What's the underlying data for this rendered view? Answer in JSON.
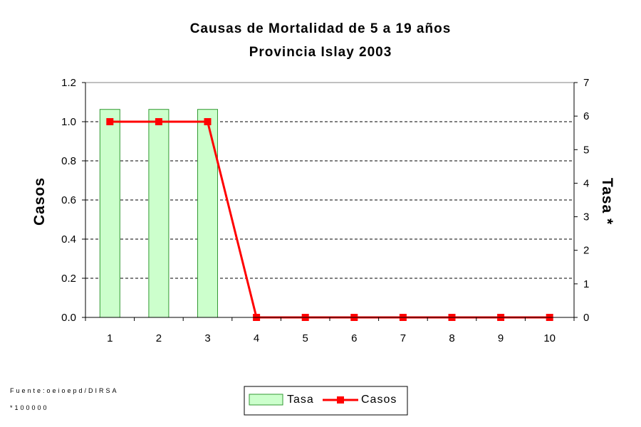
{
  "chart_data": {
    "type": "bar-line-combo",
    "title": "Causas de Mortalidad de 5 a 19 años",
    "subtitle": "Provincia Islay 2003",
    "categories": [
      "1",
      "2",
      "3",
      "4",
      "5",
      "6",
      "7",
      "8",
      "9",
      "10"
    ],
    "y_left": {
      "label": "Casos",
      "range": [
        0,
        1.2
      ],
      "ticks": [
        "0.0",
        "0.2",
        "0.4",
        "0.6",
        "0.8",
        "1.0",
        "1.2"
      ]
    },
    "y_right": {
      "label": "Tasa *",
      "range": [
        0,
        7
      ],
      "ticks": [
        "0",
        "1",
        "2",
        "3",
        "4",
        "5",
        "6",
        "7"
      ]
    },
    "series": [
      {
        "name": "Tasa",
        "kind": "bar",
        "axis": "right",
        "color": "#ccffcc",
        "values": [
          6.2,
          6.2,
          6.2,
          0,
          0,
          0,
          0,
          0,
          0,
          0
        ]
      },
      {
        "name": "Casos",
        "kind": "line",
        "axis": "left",
        "color": "#ff0000",
        "values": [
          1,
          1,
          1,
          0,
          0,
          0,
          0,
          0,
          0,
          0
        ]
      }
    ],
    "grid": "horizontal dashed",
    "legend_position": "bottom-center"
  },
  "footnotes": {
    "source": "Fuente:oeioepd/DIRSA",
    "rate_note": "*100000"
  }
}
